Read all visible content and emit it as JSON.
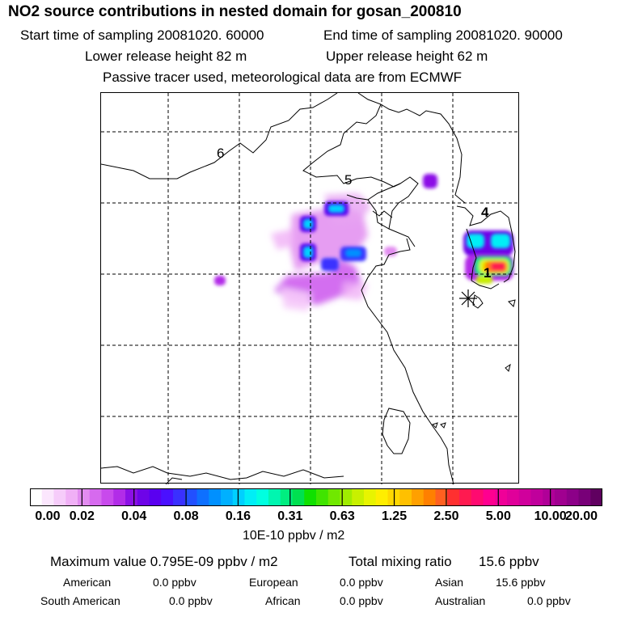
{
  "header": {
    "title": "NO2 source contributions in nested domain for gosan_200810",
    "start_time": "Start time of sampling 20081020. 60000",
    "end_time": "End time of sampling 20081020. 90000",
    "lower_release": "Lower release height   82 m",
    "upper_release": "Upper release height   62 m",
    "passive_note": "Passive tracer used, meteorological data are from ECMWF"
  },
  "chart_data": {
    "type": "heatmap",
    "title": "NO2 source contributions in nested domain for gosan_200810",
    "region_labels": [
      "6",
      "5",
      "4",
      "1"
    ],
    "colorbar": {
      "ticks": [
        "0.00",
        "0.02",
        "0.04",
        "0.08",
        "0.16",
        "0.31",
        "0.63",
        "1.25",
        "2.50",
        "5.00",
        "10.00",
        "20.00"
      ],
      "unit": "10E-10 ppbv / m2",
      "colors": [
        "#ffffff",
        "#fbe6fd",
        "#f6ccfa",
        "#f0b0f6",
        "#e28cf0",
        "#d66aee",
        "#c84aec",
        "#b22ce8",
        "#8c10e6",
        "#6e04e8",
        "#5a00f0",
        "#4a10ff",
        "#3a30ff",
        "#2250ff",
        "#0e70ff",
        "#0090ff",
        "#00b0ff",
        "#00d0ff",
        "#00eef6",
        "#00ffe0",
        "#00f6b0",
        "#00ee80",
        "#00e050",
        "#10e000",
        "#40e400",
        "#70e800",
        "#a0ec00",
        "#c8f000",
        "#e8f400",
        "#ffee00",
        "#ffd800",
        "#ffc000",
        "#ffa000",
        "#ff8000",
        "#ff6020",
        "#ff3030",
        "#ff1a50",
        "#ff0a70",
        "#ff0090",
        "#f00098",
        "#e0009a",
        "#d0009c",
        "#c0009c",
        "#b00098",
        "#a00090",
        "#8c0088",
        "#780078",
        "#600060"
      ]
    },
    "max_value": "Maximum value  0.795E-09 ppbv / m2",
    "total_mixing_label": "Total mixing ratio",
    "total_mixing_value": "15.6 ppbv",
    "regional": [
      {
        "name": "American",
        "value": "0.0 ppbv"
      },
      {
        "name": "European",
        "value": "0.0 ppbv"
      },
      {
        "name": "Asian",
        "value": "15.6 ppbv"
      },
      {
        "name": "South American",
        "value": "0.0 ppbv"
      },
      {
        "name": "African",
        "value": "0.0 ppbv"
      },
      {
        "name": "Australian",
        "value": "0.0 ppbv"
      }
    ],
    "receptor": "gosan"
  }
}
